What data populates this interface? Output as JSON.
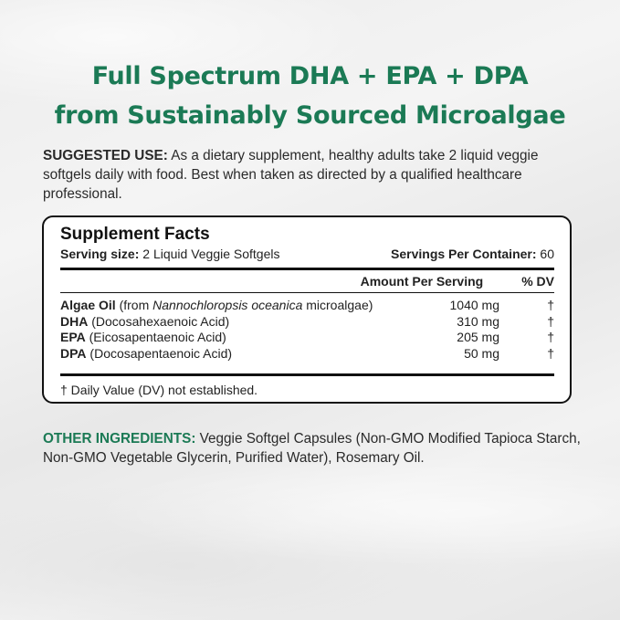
{
  "title": {
    "line1": "Full Spectrum DHA + EPA + DPA",
    "line2": "from Sustainably Sourced Microalgae"
  },
  "suggested_use": {
    "label": "SUGGESTED USE:",
    "text": " As a dietary supplement, healthy adults take 2 liquid veggie softgels daily with food. Best when taken as directed by a qualified healthcare professional."
  },
  "facts": {
    "title": "Supplement Facts",
    "serving_label": "Serving size:",
    "serving_value": " 2 Liquid Veggie Softgels",
    "servings_label": "Servings Per Container:",
    "servings_value": " 60",
    "col_amount": "Amount Per Serving",
    "col_dv": "% DV",
    "rows": [
      {
        "name": "Algae Oil",
        "pre": " (from ",
        "italic": "Nannochloropsis oceanica",
        "post": " microalgae)",
        "amount": "1040 mg",
        "dv": "†"
      },
      {
        "name": "DHA",
        "pre": " (Docosahexaenoic Acid)",
        "amount": "310 mg",
        "dv": "†"
      },
      {
        "name": "EPA",
        "pre": " (Eicosapentaenoic Acid)",
        "amount": "205 mg",
        "dv": "†"
      },
      {
        "name": "DPA",
        "pre": " (Docosapentaenoic Acid)",
        "amount": "50 mg",
        "dv": "†"
      }
    ],
    "footnote": "† Daily Value (DV) not established."
  },
  "other_ingredients": {
    "label": "OTHER INGREDIENTS:",
    "text": " Veggie Softgel Capsules (Non-GMO Modified Tapioca Starch, Non-GMO Vegetable Glycerin, Purified Water), Rosemary Oil."
  },
  "colors": {
    "accent": "#1b7a55"
  }
}
